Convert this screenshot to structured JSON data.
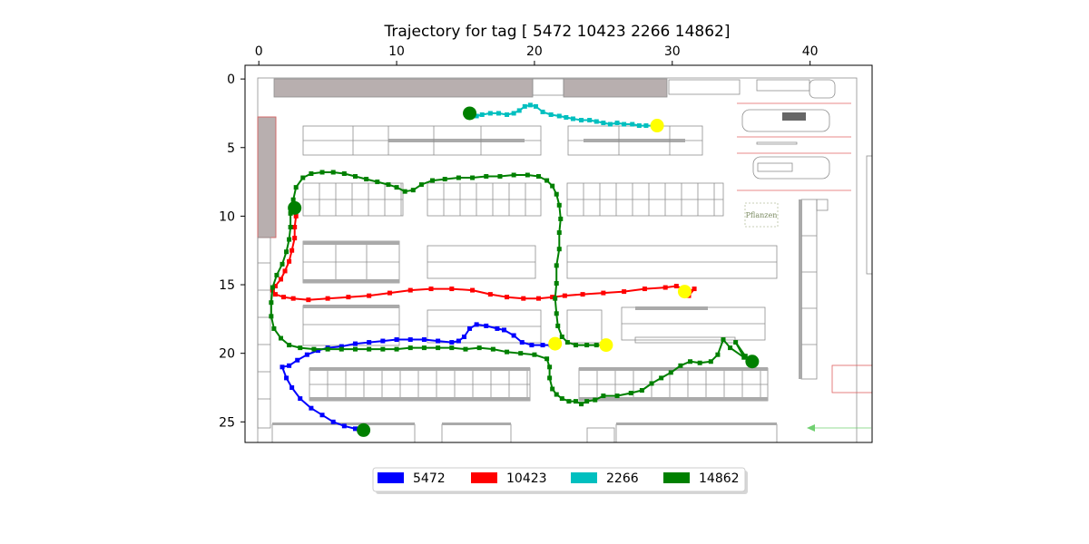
{
  "chart_data": {
    "type": "line",
    "title": "Trajectory for tag [ 5472 10423  2266 14862]",
    "xlabel": "",
    "ylabel": "",
    "xlim": [
      -1,
      44.5
    ],
    "ylim": [
      26.5,
      -1
    ],
    "x_axis_position": "top",
    "x_ticks": [
      0,
      10,
      20,
      30,
      40
    ],
    "y_ticks": [
      0,
      5,
      10,
      15,
      20,
      25
    ],
    "grid": false,
    "background": "warehouse floor plan image",
    "legend_position": "bottom-center",
    "series": [
      {
        "name": "5472",
        "color": "#0000ff",
        "start_marker_color": "#008000",
        "end_marker_color": "#ffff00",
        "points": [
          [
            7.6,
            25.6
          ],
          [
            7.0,
            25.5
          ],
          [
            6.2,
            25.3
          ],
          [
            5.4,
            25.0
          ],
          [
            4.6,
            24.5
          ],
          [
            3.8,
            24.0
          ],
          [
            3.0,
            23.3
          ],
          [
            2.4,
            22.5
          ],
          [
            2.0,
            21.8
          ],
          [
            1.7,
            21.0
          ],
          [
            2.2,
            20.9
          ],
          [
            2.8,
            20.5
          ],
          [
            3.5,
            20.1
          ],
          [
            4.3,
            19.8
          ],
          [
            5.0,
            19.6
          ],
          [
            6.0,
            19.5
          ],
          [
            7.0,
            19.3
          ],
          [
            8.0,
            19.2
          ],
          [
            9.0,
            19.1
          ],
          [
            10.0,
            19.0
          ],
          [
            11.0,
            19.0
          ],
          [
            12.0,
            19.0
          ],
          [
            13.0,
            19.1
          ],
          [
            14.0,
            19.2
          ],
          [
            14.5,
            19.1
          ],
          [
            14.9,
            18.8
          ],
          [
            15.3,
            18.2
          ],
          [
            15.8,
            17.9
          ],
          [
            16.5,
            18.0
          ],
          [
            17.3,
            18.2
          ],
          [
            17.8,
            18.3
          ],
          [
            18.5,
            18.7
          ],
          [
            19.1,
            19.2
          ],
          [
            19.8,
            19.4
          ],
          [
            20.6,
            19.4
          ],
          [
            21.2,
            19.4
          ],
          [
            21.5,
            19.3
          ]
        ]
      },
      {
        "name": "10423",
        "color": "#ff0000",
        "start_marker_color": "#008000",
        "end_marker_color": "#ffff00",
        "points": [
          [
            2.6,
            9.4
          ],
          [
            2.7,
            10.0
          ],
          [
            2.6,
            10.8
          ],
          [
            2.6,
            11.6
          ],
          [
            2.4,
            12.5
          ],
          [
            2.2,
            13.3
          ],
          [
            1.9,
            14.0
          ],
          [
            1.6,
            14.6
          ],
          [
            1.2,
            15.1
          ],
          [
            1.0,
            15.4
          ],
          [
            1.2,
            15.7
          ],
          [
            1.8,
            15.9
          ],
          [
            2.5,
            16.0
          ],
          [
            3.6,
            16.1
          ],
          [
            5.0,
            16.0
          ],
          [
            6.5,
            15.9
          ],
          [
            8.0,
            15.8
          ],
          [
            9.5,
            15.6
          ],
          [
            11.0,
            15.4
          ],
          [
            12.5,
            15.3
          ],
          [
            14.0,
            15.3
          ],
          [
            15.5,
            15.4
          ],
          [
            16.8,
            15.7
          ],
          [
            18.0,
            15.9
          ],
          [
            19.2,
            16.0
          ],
          [
            20.3,
            16.0
          ],
          [
            21.3,
            15.9
          ],
          [
            22.2,
            15.8
          ],
          [
            23.5,
            15.7
          ],
          [
            25.0,
            15.6
          ],
          [
            26.5,
            15.5
          ],
          [
            28.0,
            15.3
          ],
          [
            29.5,
            15.2
          ],
          [
            30.3,
            15.1
          ],
          [
            30.8,
            15.3
          ],
          [
            31.2,
            15.5
          ],
          [
            31.6,
            15.3
          ],
          [
            31.2,
            15.8
          ],
          [
            30.9,
            15.5
          ]
        ]
      },
      {
        "name": "2266",
        "color": "#00bfbf",
        "start_marker_color": "#008000",
        "end_marker_color": "#ffff00",
        "points": [
          [
            15.3,
            2.5
          ],
          [
            15.8,
            2.7
          ],
          [
            16.2,
            2.6
          ],
          [
            16.8,
            2.5
          ],
          [
            17.4,
            2.5
          ],
          [
            18.0,
            2.6
          ],
          [
            18.5,
            2.5
          ],
          [
            18.9,
            2.3
          ],
          [
            19.3,
            2.0
          ],
          [
            19.7,
            1.9
          ],
          [
            20.1,
            2.0
          ],
          [
            20.6,
            2.4
          ],
          [
            21.2,
            2.6
          ],
          [
            21.8,
            2.7
          ],
          [
            22.3,
            2.8
          ],
          [
            22.8,
            2.9
          ],
          [
            23.4,
            3.0
          ],
          [
            24.0,
            3.0
          ],
          [
            24.5,
            3.1
          ],
          [
            25.0,
            3.2
          ],
          [
            25.5,
            3.3
          ],
          [
            26.0,
            3.2
          ],
          [
            26.5,
            3.3
          ],
          [
            27.1,
            3.3
          ],
          [
            27.6,
            3.4
          ],
          [
            28.1,
            3.4
          ],
          [
            28.6,
            3.4
          ],
          [
            28.9,
            3.4
          ]
        ]
      },
      {
        "name": "14862",
        "color": "#008000",
        "start_marker_color": "#008000",
        "end_marker_color": "#ffff00",
        "points": [
          [
            35.8,
            20.6
          ],
          [
            35.3,
            20.2
          ],
          [
            34.6,
            19.2
          ],
          [
            35.2,
            20.3
          ],
          [
            34.2,
            19.6
          ],
          [
            33.7,
            19.0
          ],
          [
            33.3,
            20.1
          ],
          [
            32.8,
            20.6
          ],
          [
            32.0,
            20.7
          ],
          [
            31.3,
            20.6
          ],
          [
            30.6,
            20.9
          ],
          [
            29.9,
            21.4
          ],
          [
            29.2,
            21.8
          ],
          [
            28.5,
            22.2
          ],
          [
            27.8,
            22.7
          ],
          [
            27.0,
            22.9
          ],
          [
            26.0,
            23.1
          ],
          [
            25.0,
            23.1
          ],
          [
            24.4,
            23.4
          ],
          [
            23.8,
            23.5
          ],
          [
            23.4,
            23.7
          ],
          [
            23.0,
            23.5
          ],
          [
            22.5,
            23.5
          ],
          [
            22.0,
            23.3
          ],
          [
            21.6,
            23.0
          ],
          [
            21.3,
            22.6
          ],
          [
            21.1,
            21.8
          ],
          [
            21.1,
            21.0
          ],
          [
            20.9,
            20.4
          ],
          [
            20.0,
            20.1
          ],
          [
            19.0,
            20.0
          ],
          [
            18.0,
            19.9
          ],
          [
            17.0,
            19.7
          ],
          [
            16.0,
            19.6
          ],
          [
            15.0,
            19.7
          ],
          [
            14.0,
            19.6
          ],
          [
            13.0,
            19.6
          ],
          [
            12.0,
            19.6
          ],
          [
            11.0,
            19.6
          ],
          [
            10.0,
            19.7
          ],
          [
            9.0,
            19.7
          ],
          [
            8.0,
            19.7
          ],
          [
            7.0,
            19.7
          ],
          [
            6.0,
            19.7
          ],
          [
            5.0,
            19.7
          ],
          [
            4.0,
            19.7
          ],
          [
            3.0,
            19.6
          ],
          [
            2.2,
            19.4
          ],
          [
            1.6,
            18.9
          ],
          [
            1.1,
            18.2
          ],
          [
            0.9,
            17.3
          ],
          [
            0.9,
            16.3
          ],
          [
            1.0,
            15.2
          ],
          [
            1.3,
            14.3
          ],
          [
            1.7,
            13.5
          ],
          [
            2.0,
            12.6
          ],
          [
            2.2,
            11.7
          ],
          [
            2.3,
            10.8
          ],
          [
            2.3,
            9.8
          ],
          [
            2.5,
            8.8
          ],
          [
            2.7,
            7.9
          ],
          [
            3.2,
            7.2
          ],
          [
            3.8,
            6.9
          ],
          [
            4.6,
            6.8
          ],
          [
            5.4,
            6.8
          ],
          [
            6.2,
            6.9
          ],
          [
            7.0,
            7.1
          ],
          [
            7.8,
            7.3
          ],
          [
            8.6,
            7.5
          ],
          [
            9.4,
            7.7
          ],
          [
            10.0,
            7.9
          ],
          [
            10.6,
            8.2
          ],
          [
            11.2,
            8.1
          ],
          [
            11.8,
            7.7
          ],
          [
            12.6,
            7.4
          ],
          [
            13.5,
            7.3
          ],
          [
            14.5,
            7.2
          ],
          [
            15.5,
            7.2
          ],
          [
            16.5,
            7.1
          ],
          [
            17.5,
            7.1
          ],
          [
            18.5,
            7.0
          ],
          [
            19.5,
            7.0
          ],
          [
            20.3,
            7.1
          ],
          [
            20.9,
            7.4
          ],
          [
            21.3,
            7.8
          ],
          [
            21.6,
            8.4
          ],
          [
            21.8,
            9.2
          ],
          [
            21.9,
            10.2
          ],
          [
            21.8,
            11.2
          ],
          [
            21.8,
            12.4
          ],
          [
            21.6,
            13.6
          ],
          [
            21.6,
            14.9
          ],
          [
            21.5,
            16.0
          ],
          [
            21.6,
            17.1
          ],
          [
            21.7,
            18.0
          ],
          [
            22.0,
            18.8
          ],
          [
            22.4,
            19.2
          ],
          [
            23.0,
            19.4
          ],
          [
            23.8,
            19.4
          ],
          [
            24.5,
            19.4
          ],
          [
            25.2,
            19.4
          ]
        ]
      }
    ]
  },
  "legend": {
    "items": [
      {
        "label": "5472",
        "color": "#0000ff"
      },
      {
        "label": "10423",
        "color": "#ff0000"
      },
      {
        "label": "2266",
        "color": "#00bfbf"
      },
      {
        "label": "14862",
        "color": "#008000"
      }
    ]
  },
  "floorplan": {
    "label_pflanzen": "Pflanzen"
  }
}
